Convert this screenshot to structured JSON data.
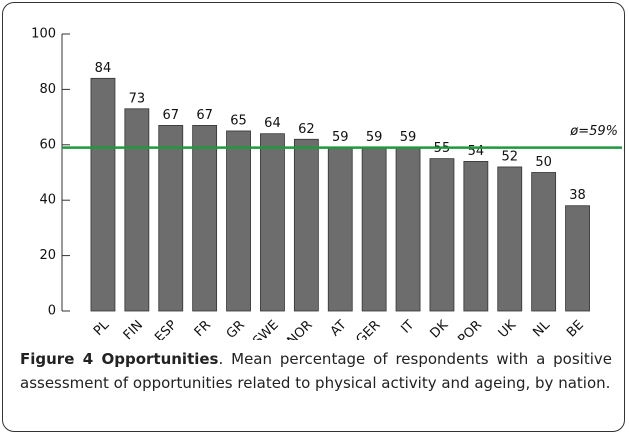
{
  "chart_data": {
    "type": "bar",
    "categories": [
      "PL",
      "FIN",
      "ESP",
      "FR",
      "GR",
      "SWE",
      "NOR",
      "AT",
      "GER",
      "IT",
      "DK",
      "POR",
      "UK",
      "NL",
      "BE"
    ],
    "values": [
      84,
      73,
      67,
      67,
      65,
      64,
      62,
      59,
      59,
      59,
      55,
      54,
      52,
      50,
      38
    ],
    "color": "#6d6d6d",
    "ylim": [
      0,
      100
    ],
    "yticks": [
      0,
      20,
      40,
      60,
      80,
      100
    ],
    "reference_line": {
      "value": 59,
      "label": "ø=59%",
      "color": "#1e9a3e"
    }
  },
  "caption": {
    "label": "Figure 4 Opportunities",
    "text": ". Mean percentage of respondents with a positive assessment of opportunities related to physical activity and ageing, by nation."
  }
}
